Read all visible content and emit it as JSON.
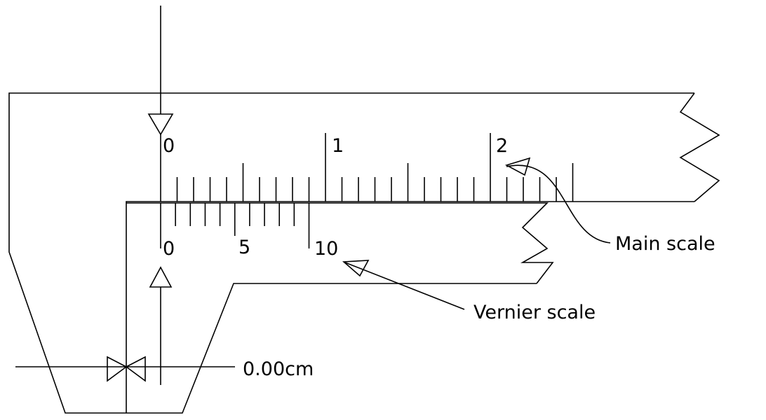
{
  "main_scale": {
    "label": "Main scale",
    "numbers": [
      "0",
      "1",
      "2"
    ]
  },
  "vernier_scale": {
    "label": "Vernier scale",
    "numbers": [
      "0",
      "5",
      "10"
    ]
  },
  "reading": "0.00cm"
}
